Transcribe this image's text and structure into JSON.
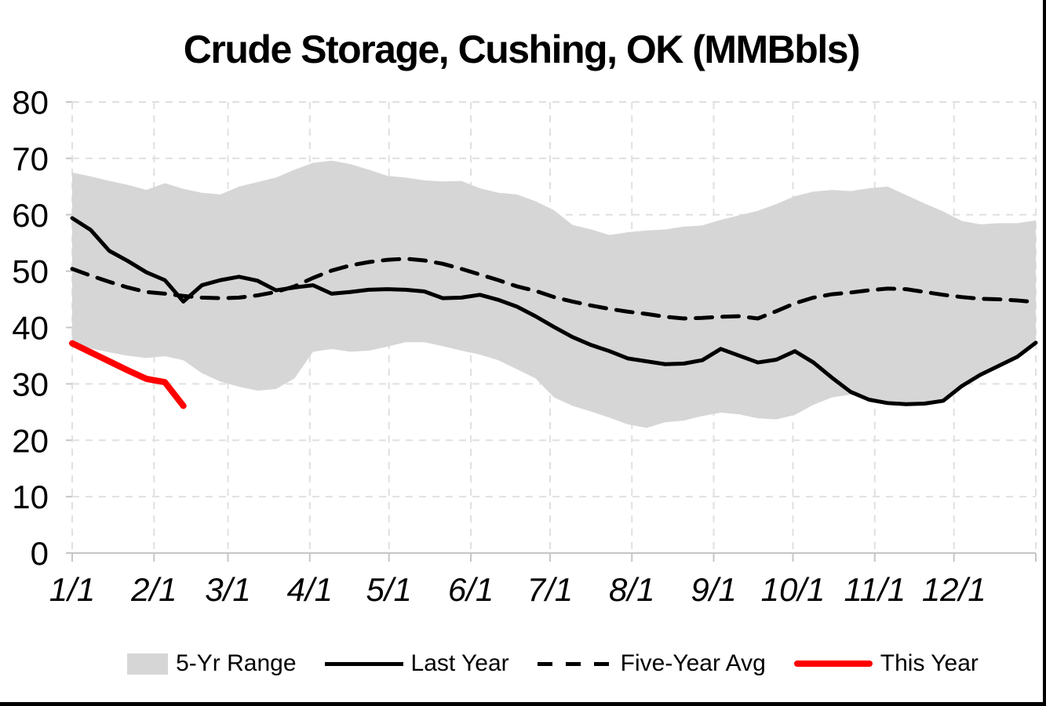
{
  "chart_data": {
    "type": "area+line",
    "title": "Crude Storage, Cushing, OK (MMBbls)",
    "weeks": 53,
    "grid": "dashed light gray, on",
    "legend_position": "bottom center",
    "y_axis": {
      "min": 0,
      "max": 80,
      "ticks": [
        0,
        10,
        20,
        30,
        40,
        50,
        60,
        70,
        80
      ],
      "tick_labels": [
        "0",
        "10",
        "20",
        "30",
        "40",
        "50",
        "60",
        "70",
        "80"
      ]
    },
    "x_axis": {
      "tick_labels": [
        "1/1",
        "2/1",
        "3/1",
        "4/1",
        "5/1",
        "6/1",
        "7/1",
        "8/1",
        "9/1",
        "10/1",
        "11/1",
        "12/1"
      ],
      "month_start_days": [
        0,
        31,
        59,
        90,
        120,
        151,
        181,
        212,
        243,
        273,
        304,
        334
      ],
      "range_days": [
        0,
        365
      ]
    },
    "series": [
      {
        "name": "5-Yr Range",
        "type": "band",
        "color": "#d6d6d6",
        "weekly_upper": [
          67.5,
          66.8,
          66.0,
          65.3,
          64.4,
          65.6,
          64.6,
          63.9,
          63.6,
          65.0,
          65.8,
          66.6,
          68.0,
          69.2,
          69.6,
          69.0,
          68.0,
          66.9,
          66.6,
          66.1,
          65.9,
          66.0,
          64.7,
          63.9,
          63.6,
          62.4,
          60.8,
          58.2,
          57.4,
          56.4,
          56.9,
          57.2,
          57.4,
          57.9,
          58.1,
          59.1,
          59.9,
          60.7,
          61.9,
          63.3,
          64.1,
          64.4,
          64.2,
          64.7,
          65.0,
          63.5,
          62.0,
          60.6,
          58.9,
          58.3,
          58.5,
          58.5,
          59.0
        ],
        "weekly_lower": [
          37.5,
          36.3,
          35.6,
          35.0,
          34.6,
          34.9,
          34.2,
          31.9,
          30.4,
          29.5,
          28.8,
          29.1,
          31.0,
          35.7,
          36.2,
          35.7,
          35.9,
          36.6,
          37.4,
          37.4,
          36.7,
          35.9,
          35.2,
          34.2,
          32.6,
          31.0,
          27.6,
          26.1,
          25.1,
          24.0,
          22.8,
          22.2,
          23.2,
          23.5,
          24.3,
          24.9,
          24.6,
          23.9,
          23.7,
          24.5,
          26.3,
          27.6,
          28.1,
          27.2,
          26.9,
          26.5,
          26.5,
          26.9,
          29.3,
          31.4,
          33.1,
          34.7,
          37.3
        ]
      },
      {
        "name": "Last Year",
        "type": "line",
        "style": "solid",
        "color": "#000000",
        "weekly": [
          59.4,
          57.3,
          53.6,
          51.8,
          49.8,
          48.4,
          44.6,
          47.5,
          48.4,
          49.0,
          48.3,
          46.6,
          47.1,
          47.5,
          46.0,
          46.3,
          46.7,
          46.8,
          46.7,
          46.4,
          45.2,
          45.3,
          45.8,
          44.9,
          43.7,
          42.0,
          40.1,
          38.3,
          36.9,
          35.8,
          34.5,
          34.0,
          33.5,
          33.6,
          34.2,
          36.2,
          35.0,
          33.8,
          34.3,
          35.8,
          33.8,
          31.1,
          28.6,
          27.2,
          26.6,
          26.4,
          26.5,
          27.0,
          29.6,
          31.6,
          33.2,
          34.8,
          37.3
        ]
      },
      {
        "name": "Five-Year Avg",
        "type": "line",
        "style": "dashed",
        "color": "#000000",
        "weekly": [
          50.4,
          49.2,
          48.1,
          47.1,
          46.3,
          46.0,
          45.6,
          45.3,
          45.2,
          45.3,
          45.7,
          46.3,
          47.3,
          48.8,
          50.1,
          51.0,
          51.6,
          52.0,
          52.2,
          51.9,
          51.3,
          50.4,
          49.4,
          48.4,
          47.3,
          46.5,
          45.4,
          44.6,
          43.9,
          43.3,
          42.8,
          42.4,
          41.9,
          41.6,
          41.7,
          41.9,
          42.0,
          41.6,
          42.9,
          44.3,
          45.3,
          45.9,
          46.2,
          46.6,
          46.9,
          46.8,
          46.3,
          45.8,
          45.4,
          45.1,
          45.0,
          44.8,
          44.5
        ]
      },
      {
        "name": "This Year",
        "type": "line",
        "style": "thick-solid",
        "color": "#ff0000",
        "weekly": [
          37.2,
          35.6,
          34.0,
          32.4,
          30.9,
          30.3,
          26.1
        ]
      }
    ],
    "legend": [
      {
        "label": "5-Yr Range",
        "swatch": "gray-band"
      },
      {
        "label": "Last Year",
        "swatch": "solid-black-line"
      },
      {
        "label": "Five-Year Avg",
        "swatch": "dashed-black-line"
      },
      {
        "label": "This Year",
        "swatch": "thick-red-line"
      }
    ]
  }
}
